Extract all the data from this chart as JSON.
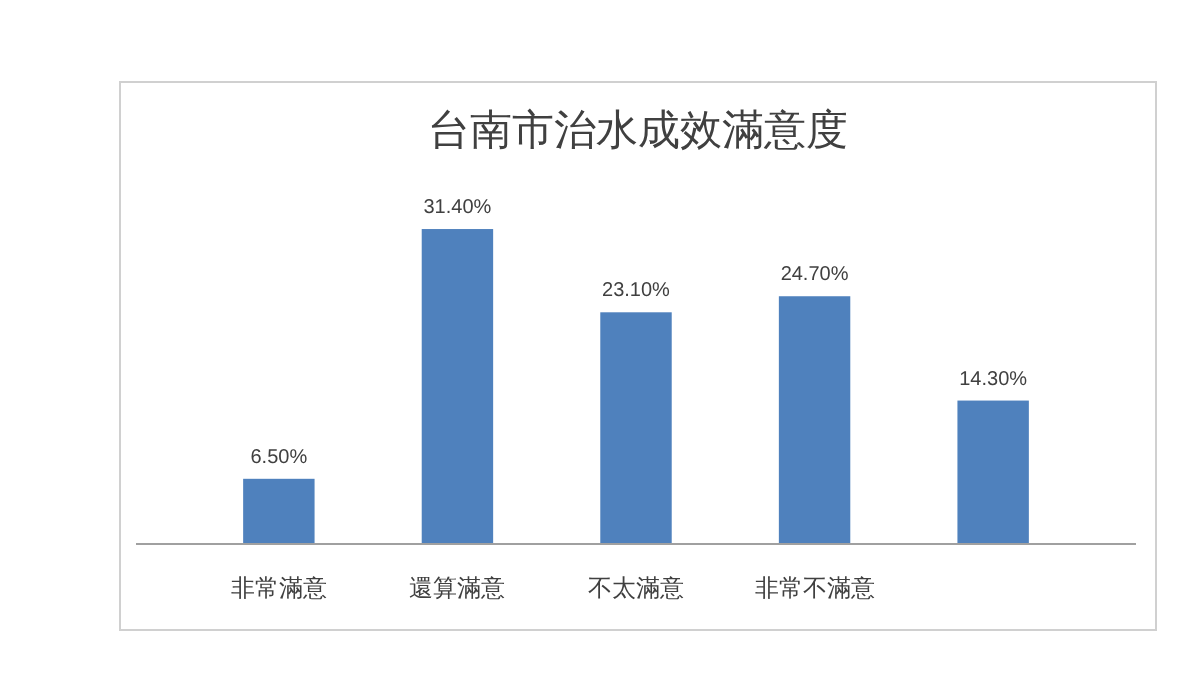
{
  "chart_data": {
    "type": "bar",
    "title": "台南市治水成效滿意度",
    "categories": [
      "非常滿意",
      "還算滿意",
      "不太滿意",
      "非常不滿意",
      null
    ],
    "values": [
      6.5,
      31.4,
      23.1,
      24.7,
      14.3
    ],
    "value_labels": [
      "6.50%",
      "31.40%",
      "23.10%",
      "24.70%",
      "14.30%"
    ],
    "color": "#4f81bd",
    "tick_labels": "x"
  }
}
